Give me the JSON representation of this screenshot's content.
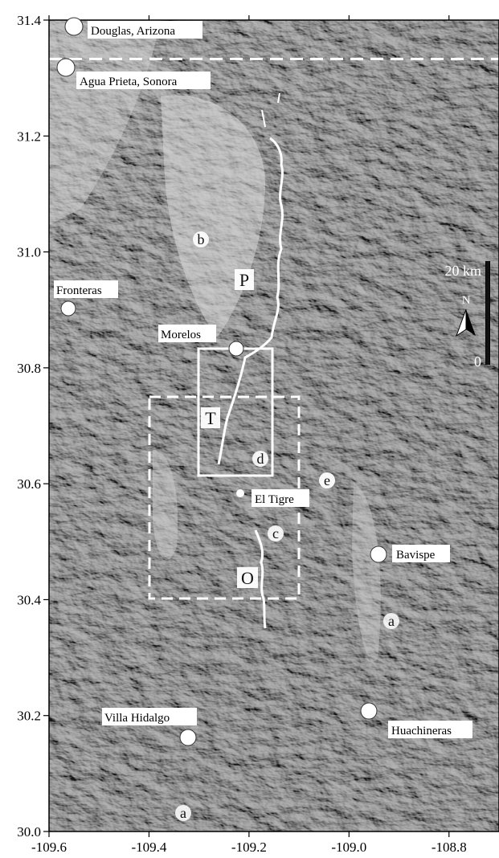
{
  "axes": {
    "x_ticks": [
      "-109.6",
      "-109.4",
      "-109.2",
      "-109.0",
      "-108.8"
    ],
    "y_ticks": [
      "31.4",
      "31.2",
      "31.0",
      "30.8",
      "30.6",
      "30.4",
      "30.2",
      "30.0"
    ],
    "x_range": [
      -109.6,
      -108.7
    ],
    "y_range": [
      30.0,
      31.4
    ]
  },
  "border_latitude": 31.333,
  "places": [
    {
      "key": "douglas",
      "name": "Douglas, Arizona"
    },
    {
      "key": "agua_prieta",
      "name": "Agua Prieta, Sonora"
    },
    {
      "key": "fronteras",
      "name": "Fronteras"
    },
    {
      "key": "morelos",
      "name": "Morelos"
    },
    {
      "key": "el_tigre",
      "name": "El Tigre"
    },
    {
      "key": "bavispe",
      "name": "Bavispe"
    },
    {
      "key": "villa_hidalgo",
      "name": "Villa Hidalgo"
    },
    {
      "key": "huachineras",
      "name": "Huachineras"
    }
  ],
  "feature_letters": {
    "b": "b",
    "c": "c",
    "d": "d",
    "e": "e",
    "a_east": "a",
    "a_south": "a"
  },
  "fault_labels": {
    "P": "P",
    "T": "T",
    "O": "O"
  },
  "scale_bar": {
    "label": "20 km",
    "zero": "0",
    "north": "N"
  },
  "colors": {
    "relief_light": "#cfcfcf",
    "relief_dark": "#5a5a5a",
    "fault_trace": "#ffffff",
    "axis": "#000000"
  }
}
